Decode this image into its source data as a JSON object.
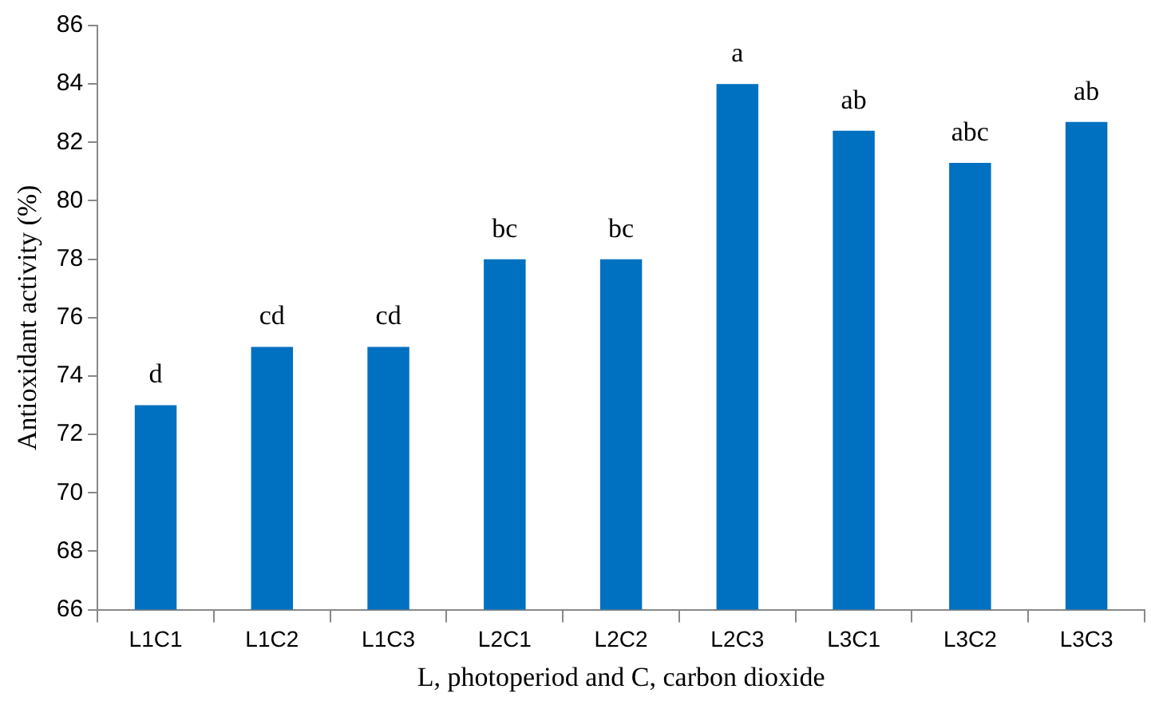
{
  "chart_data": {
    "type": "bar",
    "xlabel": "L, photoperiod and C, carbon dioxide",
    "ylabel": "Antioxidant activity (%)",
    "categories": [
      "L1C1",
      "L1C2",
      "L1C3",
      "L2C1",
      "L2C2",
      "L2C3",
      "L3C1",
      "L3C2",
      "L3C3"
    ],
    "values": [
      73,
      75,
      75,
      78,
      78,
      84,
      82.4,
      81.3,
      82.7
    ],
    "color": "#0070c0",
    "ylim": [
      66,
      86
    ],
    "yticks": [
      66,
      68,
      70,
      72,
      74,
      76,
      78,
      80,
      82,
      84,
      86
    ],
    "grid": false,
    "legend": false,
    "annotations": [
      {
        "text": "d",
        "x": "L1C1",
        "y": 73
      },
      {
        "text": "cd",
        "x": "L1C2",
        "y": 75
      },
      {
        "text": "cd",
        "x": "L1C3",
        "y": 75
      },
      {
        "text": "bc",
        "x": "L2C1",
        "y": 78
      },
      {
        "text": "bc",
        "x": "L2C2",
        "y": 78
      },
      {
        "text": "a",
        "x": "L2C3",
        "y": 84
      },
      {
        "text": "ab",
        "x": "L3C1",
        "y": 82.4
      },
      {
        "text": "abc",
        "x": "L3C2",
        "y": 81.3
      },
      {
        "text": "ab",
        "x": "L3C3",
        "y": 82.7
      }
    ]
  }
}
